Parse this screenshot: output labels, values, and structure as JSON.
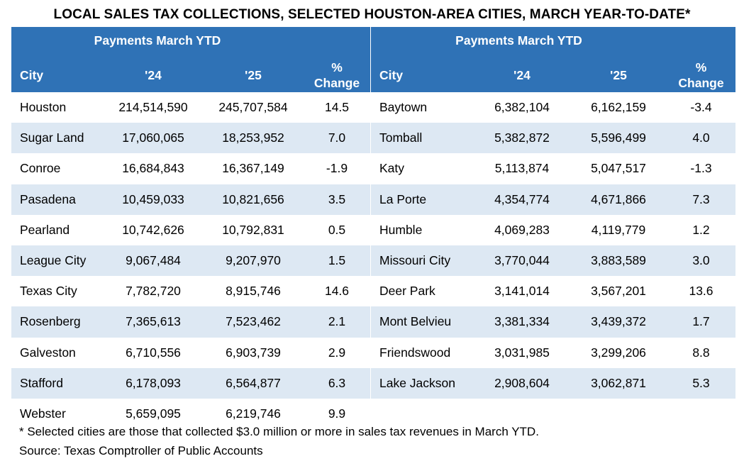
{
  "title": "LOCAL SALES TAX COLLECTIONS, SELECTED HOUSTON-AREA CITIES, MARCH YEAR-TO-DATE*",
  "header": {
    "group_label": "Payments March YTD",
    "city": "City",
    "y24": "'24",
    "y25": "'25",
    "pct_line1": "%",
    "pct_line2": "Change"
  },
  "left_rows": [
    {
      "city": "Houston",
      "y24": "214,514,590",
      "y25": "245,707,584",
      "pct": "14.5"
    },
    {
      "city": "Sugar Land",
      "y24": "17,060,065",
      "y25": "18,253,952",
      "pct": "7.0"
    },
    {
      "city": "Conroe",
      "y24": "16,684,843",
      "y25": "16,367,149",
      "pct": "-1.9"
    },
    {
      "city": "Pasadena",
      "y24": "10,459,033",
      "y25": "10,821,656",
      "pct": "3.5"
    },
    {
      "city": "Pearland",
      "y24": "10,742,626",
      "y25": "10,792,831",
      "pct": "0.5"
    },
    {
      "city": "League City",
      "y24": "9,067,484",
      "y25": "9,207,970",
      "pct": "1.5"
    },
    {
      "city": "Texas City",
      "y24": "7,782,720",
      "y25": "8,915,746",
      "pct": "14.6"
    },
    {
      "city": "Rosenberg",
      "y24": "7,365,613",
      "y25": "7,523,462",
      "pct": "2.1"
    },
    {
      "city": "Galveston",
      "y24": "6,710,556",
      "y25": "6,903,739",
      "pct": "2.9"
    },
    {
      "city": "Stafford",
      "y24": "6,178,093",
      "y25": "6,564,877",
      "pct": "6.3"
    },
    {
      "city": "Webster",
      "y24": "5,659,095",
      "y25": "6,219,746",
      "pct": "9.9"
    }
  ],
  "right_rows": [
    {
      "city": "Baytown",
      "y24": "6,382,104",
      "y25": "6,162,159",
      "pct": "-3.4"
    },
    {
      "city": "Tomball",
      "y24": "5,382,872",
      "y25": "5,596,499",
      "pct": "4.0"
    },
    {
      "city": "Katy",
      "y24": "5,113,874",
      "y25": "5,047,517",
      "pct": "-1.3"
    },
    {
      "city": "La Porte",
      "y24": "4,354,774",
      "y25": "4,671,866",
      "pct": "7.3"
    },
    {
      "city": "Humble",
      "y24": "4,069,283",
      "y25": "4,119,779",
      "pct": "1.2"
    },
    {
      "city": "Missouri City",
      "y24": "3,770,044",
      "y25": "3,883,589",
      "pct": "3.0"
    },
    {
      "city": "Deer Park",
      "y24": "3,141,014",
      "y25": "3,567,201",
      "pct": "13.6"
    },
    {
      "city": "Mont Belvieu",
      "y24": "3,381,334",
      "y25": "3,439,372",
      "pct": "1.7"
    },
    {
      "city": "Friendswood",
      "y24": "3,031,985",
      "y25": "3,299,206",
      "pct": "8.8"
    },
    {
      "city": "Lake Jackson",
      "y24": "2,908,604",
      "y25": "3,062,871",
      "pct": "5.3"
    }
  ],
  "footnote": "* Selected cities are those that collected $3.0 million or more in sales tax revenues in March YTD.",
  "source": "Source: Texas Comptroller of Public Accounts",
  "colors": {
    "header_bg": "#2f72b6",
    "band_bg": "#dde8f3"
  }
}
